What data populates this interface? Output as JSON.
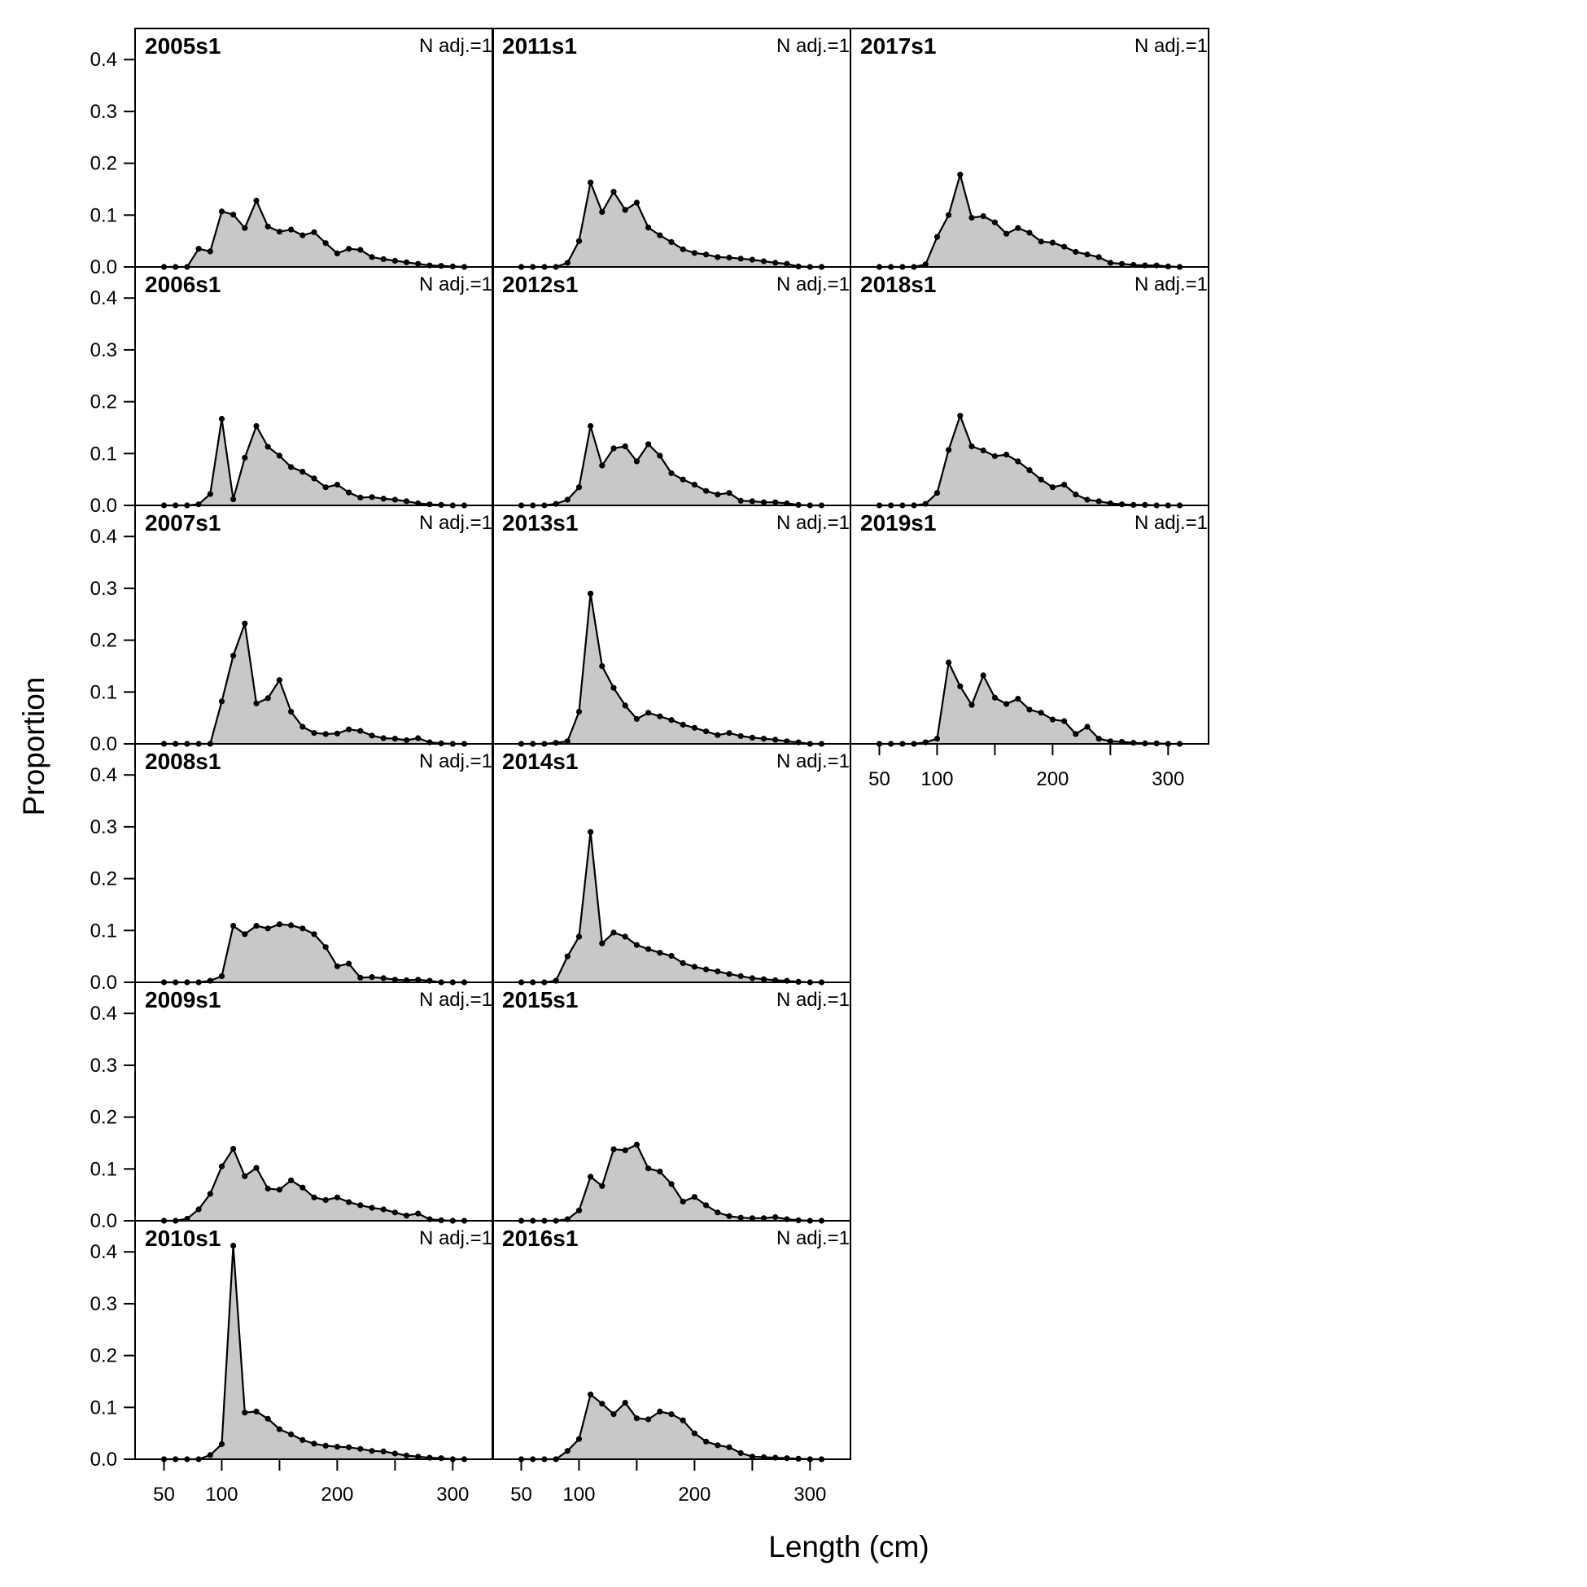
{
  "chart_data": {
    "type": "area",
    "y_axis_label": "Proportion",
    "x_axis_label": "Length (cm)",
    "annotation": "N adj.=1",
    "y_ticks": [
      "0.0",
      "0.1",
      "0.2",
      "0.3",
      "0.4"
    ],
    "x_ticks": [
      "50",
      "100",
      "200",
      "300"
    ],
    "xlim": [
      25,
      335
    ],
    "ylim": [
      0,
      0.46
    ],
    "grid": false,
    "fill_color": "#c8c8c8",
    "line_color": "#000000",
    "x": [
      50,
      60,
      70,
      80,
      90,
      100,
      110,
      120,
      130,
      140,
      150,
      160,
      170,
      180,
      190,
      200,
      210,
      220,
      230,
      240,
      250,
      260,
      270,
      280,
      290,
      300,
      310
    ],
    "panels": [
      {
        "name": "2005s1",
        "column": 0,
        "row": 0,
        "values": [
          0,
          0,
          0,
          0.035,
          0.03,
          0.107,
          0.101,
          0.075,
          0.128,
          0.078,
          0.068,
          0.072,
          0.061,
          0.067,
          0.046,
          0.026,
          0.035,
          0.033,
          0.019,
          0.015,
          0.012,
          0.009,
          0.006,
          0.003,
          0.002,
          0.001,
          0
        ]
      },
      {
        "name": "2006s1",
        "column": 0,
        "row": 1,
        "values": [
          0,
          0,
          0,
          0.002,
          0.022,
          0.167,
          0.012,
          0.092,
          0.153,
          0.113,
          0.096,
          0.074,
          0.065,
          0.052,
          0.035,
          0.04,
          0.025,
          0.015,
          0.016,
          0.013,
          0.011,
          0.008,
          0.004,
          0.002,
          0.001,
          0,
          0
        ]
      },
      {
        "name": "2007s1",
        "column": 0,
        "row": 2,
        "values": [
          0,
          0,
          0,
          0,
          0,
          0.082,
          0.17,
          0.232,
          0.078,
          0.088,
          0.123,
          0.062,
          0.033,
          0.021,
          0.019,
          0.02,
          0.028,
          0.025,
          0.016,
          0.011,
          0.01,
          0.007,
          0.011,
          0.003,
          0.001,
          0,
          0
        ]
      },
      {
        "name": "2008s1",
        "column": 0,
        "row": 3,
        "values": [
          0,
          0,
          0,
          0,
          0.003,
          0.012,
          0.109,
          0.093,
          0.109,
          0.104,
          0.112,
          0.11,
          0.104,
          0.093,
          0.068,
          0.031,
          0.036,
          0.009,
          0.01,
          0.008,
          0.005,
          0.004,
          0.005,
          0.003,
          0,
          0,
          0
        ]
      },
      {
        "name": "2009s1",
        "column": 0,
        "row": 4,
        "values": [
          0,
          0,
          0.004,
          0.022,
          0.052,
          0.105,
          0.139,
          0.086,
          0.102,
          0.062,
          0.06,
          0.078,
          0.064,
          0.045,
          0.04,
          0.045,
          0.036,
          0.03,
          0.025,
          0.022,
          0.016,
          0.01,
          0.014,
          0.003,
          0.001,
          0,
          0
        ]
      },
      {
        "name": "2010s1",
        "column": 0,
        "row": 5,
        "values": [
          0,
          0,
          0,
          0,
          0.008,
          0.029,
          0.412,
          0.09,
          0.092,
          0.078,
          0.058,
          0.048,
          0.037,
          0.03,
          0.026,
          0.024,
          0.023,
          0.02,
          0.016,
          0.015,
          0.011,
          0.007,
          0.005,
          0.003,
          0.002,
          0,
          0
        ]
      },
      {
        "name": "2011s1",
        "column": 1,
        "row": 0,
        "values": [
          0,
          0,
          0,
          0,
          0.008,
          0.05,
          0.163,
          0.106,
          0.145,
          0.11,
          0.124,
          0.076,
          0.061,
          0.048,
          0.034,
          0.027,
          0.024,
          0.019,
          0.018,
          0.016,
          0.014,
          0.011,
          0.008,
          0.006,
          0.001,
          0,
          0
        ]
      },
      {
        "name": "2012s1",
        "column": 1,
        "row": 1,
        "values": [
          0,
          0,
          0,
          0.003,
          0.011,
          0.035,
          0.153,
          0.077,
          0.11,
          0.114,
          0.085,
          0.118,
          0.096,
          0.062,
          0.05,
          0.04,
          0.028,
          0.021,
          0.024,
          0.009,
          0.008,
          0.006,
          0.006,
          0.004,
          0.001,
          0,
          0
        ]
      },
      {
        "name": "2013s1",
        "column": 1,
        "row": 2,
        "values": [
          0,
          0,
          0,
          0.002,
          0.005,
          0.062,
          0.29,
          0.15,
          0.108,
          0.074,
          0.048,
          0.06,
          0.053,
          0.046,
          0.037,
          0.031,
          0.024,
          0.017,
          0.021,
          0.015,
          0.012,
          0.01,
          0.008,
          0.005,
          0.003,
          0,
          0
        ]
      },
      {
        "name": "2014s1",
        "column": 1,
        "row": 3,
        "values": [
          0,
          0,
          0,
          0.003,
          0.05,
          0.088,
          0.29,
          0.075,
          0.096,
          0.088,
          0.072,
          0.064,
          0.057,
          0.051,
          0.037,
          0.03,
          0.025,
          0.021,
          0.016,
          0.012,
          0.008,
          0.006,
          0.004,
          0.003,
          0.001,
          0,
          0
        ]
      },
      {
        "name": "2015s1",
        "column": 1,
        "row": 4,
        "values": [
          0,
          0,
          0,
          0,
          0.003,
          0.02,
          0.085,
          0.067,
          0.138,
          0.136,
          0.147,
          0.101,
          0.095,
          0.071,
          0.037,
          0.046,
          0.03,
          0.016,
          0.009,
          0.006,
          0.005,
          0.005,
          0.007,
          0.003,
          0.001,
          0,
          0
        ]
      },
      {
        "name": "2016s1",
        "column": 1,
        "row": 5,
        "values": [
          0,
          0,
          0,
          0,
          0.016,
          0.039,
          0.125,
          0.107,
          0.087,
          0.109,
          0.079,
          0.077,
          0.092,
          0.087,
          0.075,
          0.05,
          0.034,
          0.027,
          0.023,
          0.012,
          0.005,
          0.004,
          0.003,
          0.002,
          0.001,
          0,
          0
        ]
      },
      {
        "name": "2017s1",
        "column": 2,
        "row": 0,
        "values": [
          0,
          0,
          0,
          0,
          0.005,
          0.058,
          0.1,
          0.178,
          0.095,
          0.098,
          0.086,
          0.064,
          0.075,
          0.066,
          0.049,
          0.047,
          0.039,
          0.029,
          0.024,
          0.019,
          0.008,
          0.006,
          0.004,
          0.003,
          0.003,
          0.001,
          0
        ]
      },
      {
        "name": "2018s1",
        "column": 2,
        "row": 1,
        "values": [
          0,
          0,
          0,
          0,
          0.003,
          0.024,
          0.107,
          0.173,
          0.114,
          0.106,
          0.095,
          0.098,
          0.085,
          0.068,
          0.05,
          0.035,
          0.04,
          0.021,
          0.011,
          0.008,
          0.004,
          0.002,
          0.001,
          0.001,
          0,
          0,
          0
        ]
      },
      {
        "name": "2019s1",
        "column": 2,
        "row": 2,
        "values": [
          0,
          0,
          0,
          0,
          0.003,
          0.01,
          0.157,
          0.111,
          0.075,
          0.132,
          0.089,
          0.077,
          0.087,
          0.066,
          0.06,
          0.047,
          0.044,
          0.019,
          0.033,
          0.01,
          0.005,
          0.004,
          0.002,
          0.001,
          0.001,
          0,
          0
        ]
      }
    ]
  }
}
